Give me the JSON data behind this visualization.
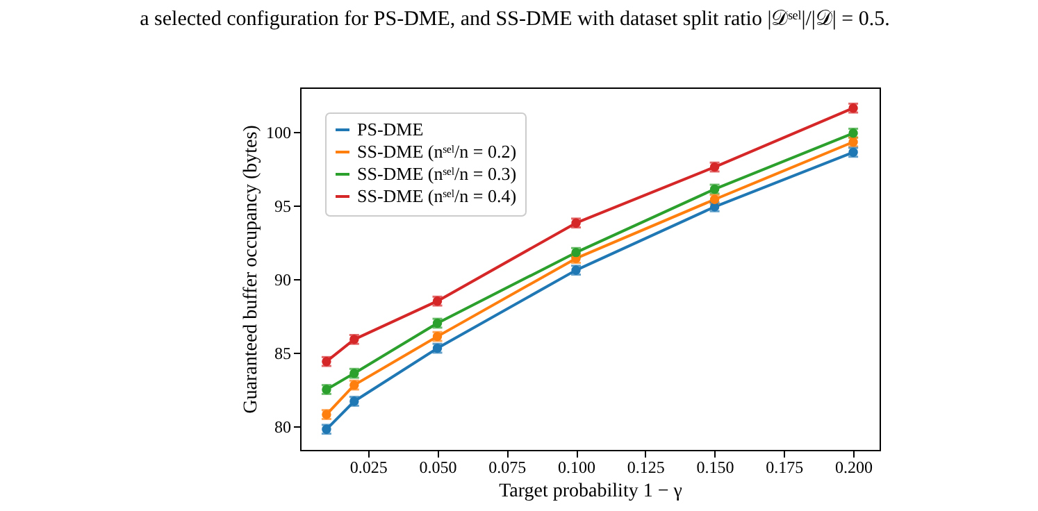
{
  "chart_data": {
    "type": "line",
    "annotations": [
      "a selected configuration for PS-DME, and SS-DME with dataset split ratio |𝒟ˢᵉˡ|/|𝒟| = 0.5."
    ],
    "xlabel": "Target probability 1 − γ",
    "ylabel": "Guaranteed buffer occupancy (bytes)",
    "x": [
      0.01,
      0.02,
      0.05,
      0.1,
      0.15,
      0.2
    ],
    "series": [
      {
        "name": "PS-DME",
        "color": "#1f77b4",
        "values": [
          79.8,
          81.7,
          85.3,
          90.6,
          94.9,
          98.6
        ],
        "errors": [
          0.3,
          0.3,
          0.3,
          0.3,
          0.3,
          0.3
        ]
      },
      {
        "name": "SS-DME (nˢᵉˡ/n = 0.2)",
        "color": "#ff7f0e",
        "values": [
          80.8,
          82.8,
          86.1,
          91.4,
          95.4,
          99.3
        ],
        "errors": [
          0.3,
          0.3,
          0.3,
          0.3,
          0.3,
          0.3
        ]
      },
      {
        "name": "SS-DME (nˢᵉˡ/n = 0.3)",
        "color": "#2ca02c",
        "values": [
          82.5,
          83.6,
          87.0,
          91.8,
          96.1,
          99.9
        ],
        "errors": [
          0.3,
          0.3,
          0.3,
          0.3,
          0.3,
          0.3
        ]
      },
      {
        "name": "SS-DME (nˢᵉˡ/n = 0.4)",
        "color": "#d62728",
        "values": [
          84.4,
          85.9,
          88.5,
          93.8,
          97.6,
          101.6
        ],
        "errors": [
          0.3,
          0.3,
          0.3,
          0.3,
          0.3,
          0.3
        ]
      }
    ],
    "xlim": [
      0.0005,
      0.2095
    ],
    "ylim": [
      78.4,
      103.0
    ],
    "xticks": [
      {
        "value": 0.025,
        "label": "0.025"
      },
      {
        "value": 0.05,
        "label": "0.050"
      },
      {
        "value": 0.075,
        "label": "0.075"
      },
      {
        "value": 0.1,
        "label": "0.100"
      },
      {
        "value": 0.125,
        "label": "0.125"
      },
      {
        "value": 0.15,
        "label": "0.150"
      },
      {
        "value": 0.175,
        "label": "0.175"
      },
      {
        "value": 0.2,
        "label": "0.200"
      }
    ],
    "yticks": [
      80,
      85,
      90,
      95,
      100
    ],
    "grid": false,
    "legend": "top left",
    "marker": "circle",
    "line_style": "solid"
  }
}
